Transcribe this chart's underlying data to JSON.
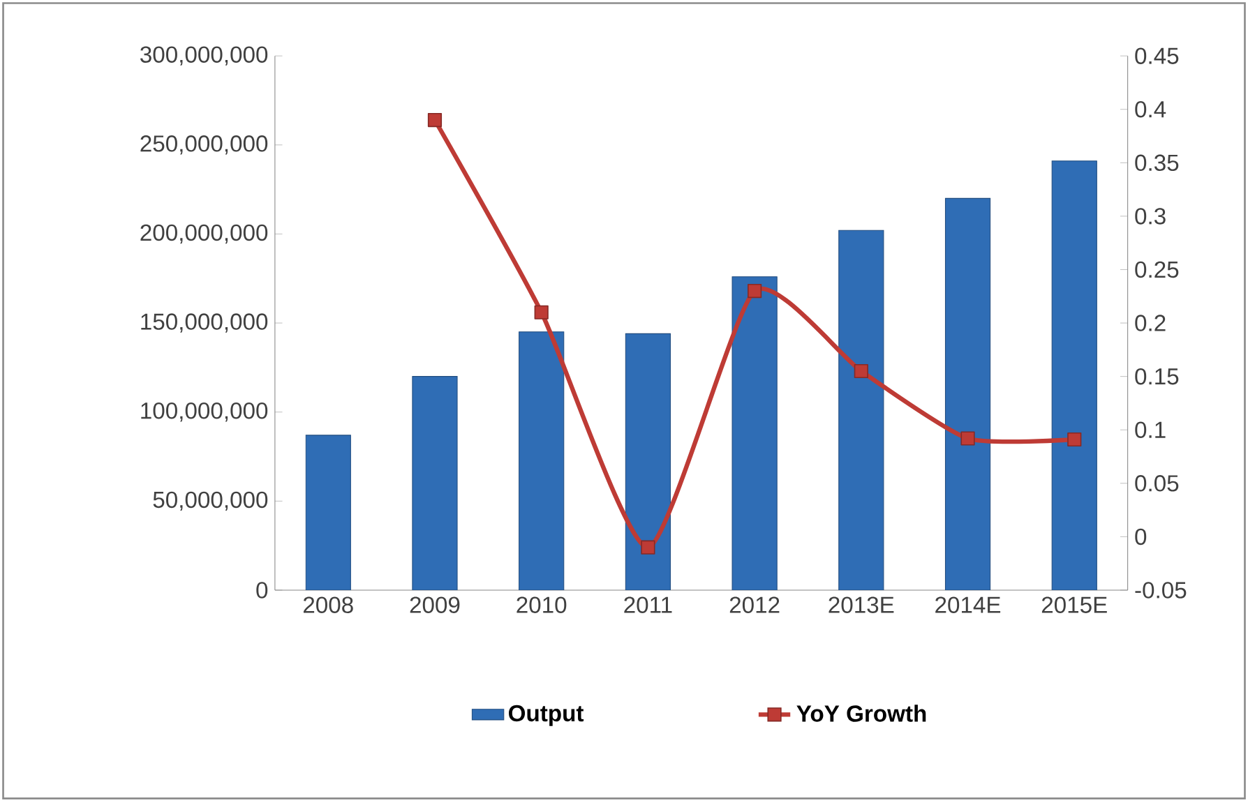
{
  "chart_data": {
    "type": "bar",
    "categories": [
      "2008",
      "2009",
      "2010",
      "2011",
      "2012",
      "2013E",
      "2014E",
      "2015E"
    ],
    "series": [
      {
        "name": "Output",
        "color": "#2f6db5",
        "values": [
          87000000,
          120000000,
          145000000,
          144000000,
          176000000,
          202000000,
          220000000,
          241000000
        ]
      },
      {
        "name": "YoY Growth",
        "type": "line",
        "axis": "y2",
        "color": "#be3b35",
        "marker": "square",
        "values": [
          null,
          0.39,
          0.21,
          -0.01,
          0.23,
          0.155,
          0.092,
          0.091
        ]
      }
    ],
    "ylim": [
      0,
      300000000
    ],
    "yticks": [
      {
        "value": 0,
        "label": "0"
      },
      {
        "value": 50000000,
        "label": "50,000,000"
      },
      {
        "value": 100000000,
        "label": "100,000,000"
      },
      {
        "value": 150000000,
        "label": "150,000,000"
      },
      {
        "value": 200000000,
        "label": "200,000,000"
      },
      {
        "value": 250000000,
        "label": "250,000,000"
      },
      {
        "value": 300000000,
        "label": "300,000,000"
      }
    ],
    "y2lim": [
      -0.05,
      0.45
    ],
    "y2ticks": [
      -0.05,
      0,
      0.05,
      0.1,
      0.15,
      0.2,
      0.25,
      0.3,
      0.35,
      0.4,
      0.45
    ],
    "legend": "bottom",
    "grid": false
  }
}
